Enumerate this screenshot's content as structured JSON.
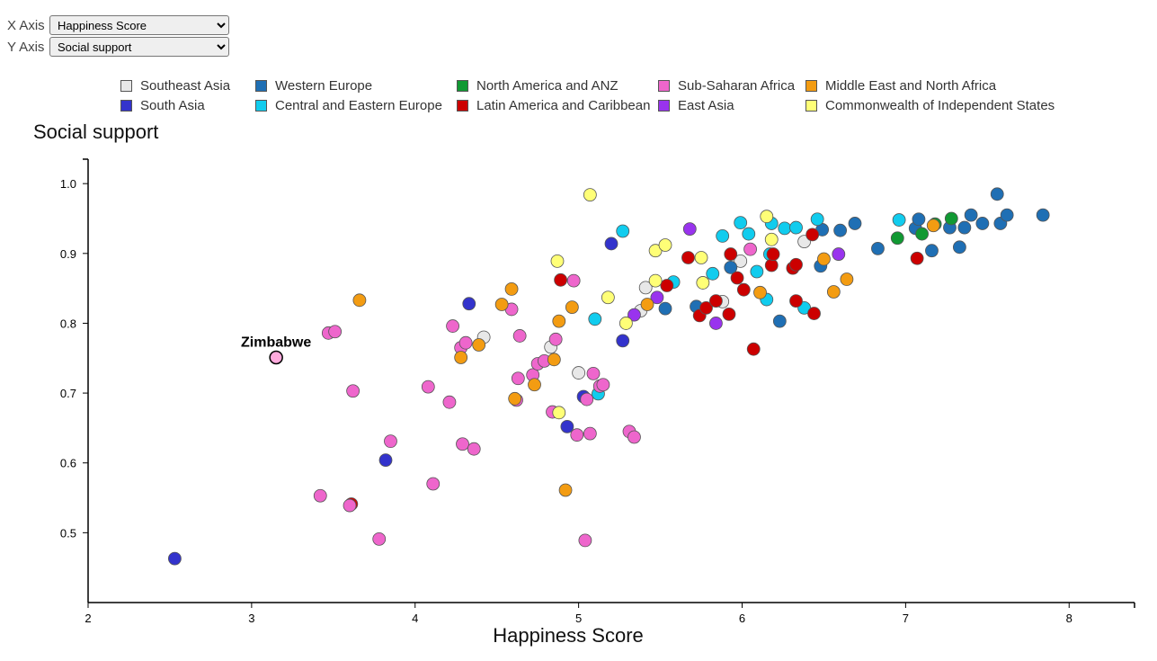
{
  "controls": {
    "x_label": "X Axis",
    "y_label": "Y Axis",
    "x_options": [
      "Happiness Score"
    ],
    "y_options": [
      "Social support"
    ],
    "x_selected": "Happiness Score",
    "y_selected": "Social support"
  },
  "colors": {
    "Southeast Asia": "#e8e8e8",
    "South Asia": "#3333cc",
    "Western Europe": "#1f6fb4",
    "Central and Eastern Europe": "#11ccee",
    "North America and ANZ": "#119933",
    "Latin America and Caribbean": "#cc0000",
    "Sub-Saharan Africa": "#ee66cc",
    "East Asia": "#9933ee",
    "Middle East and North Africa": "#f39c12",
    "Commonwealth of Independent States": "#ffff77"
  },
  "chart_data": {
    "type": "scatter",
    "xlabel": "Happiness Score",
    "ylabel": "Social support",
    "xlim": [
      2,
      8.4
    ],
    "ylim": [
      0.4,
      1.035
    ],
    "x_ticks": [
      2,
      3,
      4,
      5,
      6,
      7,
      8
    ],
    "y_ticks": [
      0.5,
      0.6,
      0.7,
      0.8,
      0.9,
      1.0
    ],
    "legend": [
      "Southeast Asia",
      "Western Europe",
      "North America and ANZ",
      "Sub-Saharan Africa",
      "Middle East and North Africa",
      "South Asia",
      "Central and Eastern Europe",
      "Latin America and Caribbean",
      "East Asia",
      "Commonwealth of Independent States"
    ],
    "highlight": {
      "label": "Zimbabwe",
      "x": 3.15,
      "y": 0.751,
      "region": "Sub-Saharan Africa"
    },
    "series": [
      {
        "name": "Southeast Asia",
        "points": [
          [
            4.42,
            0.78
          ],
          [
            4.83,
            0.766
          ],
          [
            5.0,
            0.729
          ],
          [
            5.38,
            0.818
          ],
          [
            5.41,
            0.851
          ],
          [
            5.88,
            0.831
          ],
          [
            5.99,
            0.889
          ],
          [
            6.38,
            0.917
          ]
        ]
      },
      {
        "name": "South Asia",
        "points": [
          [
            2.53,
            0.463
          ],
          [
            3.82,
            0.604
          ],
          [
            4.33,
            0.828
          ],
          [
            4.93,
            0.652
          ],
          [
            5.03,
            0.695
          ],
          [
            5.2,
            0.914
          ],
          [
            5.27,
            0.775
          ]
        ]
      },
      {
        "name": "Western Europe",
        "points": [
          [
            5.53,
            0.821
          ],
          [
            5.72,
            0.824
          ],
          [
            5.93,
            0.88
          ],
          [
            6.23,
            0.803
          ],
          [
            6.48,
            0.882
          ],
          [
            6.49,
            0.934
          ],
          [
            6.6,
            0.933
          ],
          [
            6.69,
            0.943
          ],
          [
            6.83,
            0.907
          ],
          [
            7.06,
            0.936
          ],
          [
            7.08,
            0.949
          ],
          [
            7.16,
            0.904
          ],
          [
            7.27,
            0.937
          ],
          [
            7.33,
            0.909
          ],
          [
            7.36,
            0.937
          ],
          [
            7.4,
            0.955
          ],
          [
            7.47,
            0.943
          ],
          [
            7.56,
            0.985
          ],
          [
            7.58,
            0.943
          ],
          [
            7.62,
            0.955
          ],
          [
            7.84,
            0.955
          ]
        ]
      },
      {
        "name": "Central and Eastern Europe",
        "points": [
          [
            5.1,
            0.806
          ],
          [
            5.12,
            0.699
          ],
          [
            5.27,
            0.932
          ],
          [
            5.58,
            0.859
          ],
          [
            5.82,
            0.871
          ],
          [
            5.88,
            0.925
          ],
          [
            5.99,
            0.944
          ],
          [
            6.04,
            0.928
          ],
          [
            6.09,
            0.874
          ],
          [
            6.15,
            0.834
          ],
          [
            6.17,
            0.899
          ],
          [
            6.18,
            0.943
          ],
          [
            6.26,
            0.936
          ],
          [
            6.33,
            0.937
          ],
          [
            6.38,
            0.822
          ],
          [
            6.46,
            0.949
          ],
          [
            6.96,
            0.948
          ]
        ]
      },
      {
        "name": "North America and ANZ",
        "points": [
          [
            6.95,
            0.922
          ],
          [
            7.1,
            0.928
          ],
          [
            7.18,
            0.942
          ],
          [
            7.28,
            0.95
          ]
        ]
      },
      {
        "name": "Latin America and Caribbean",
        "points": [
          [
            3.61,
            0.541
          ],
          [
            4.89,
            0.862
          ],
          [
            5.54,
            0.854
          ],
          [
            5.67,
            0.894
          ],
          [
            5.74,
            0.811
          ],
          [
            5.78,
            0.822
          ],
          [
            5.84,
            0.832
          ],
          [
            5.92,
            0.813
          ],
          [
            5.93,
            0.899
          ],
          [
            5.97,
            0.865
          ],
          [
            6.01,
            0.848
          ],
          [
            6.07,
            0.763
          ],
          [
            6.18,
            0.883
          ],
          [
            6.19,
            0.899
          ],
          [
            6.31,
            0.879
          ],
          [
            6.33,
            0.884
          ],
          [
            6.33,
            0.832
          ],
          [
            6.43,
            0.927
          ],
          [
            6.44,
            0.814
          ],
          [
            7.07,
            0.893
          ]
        ]
      },
      {
        "name": "Sub-Saharan Africa",
        "points": [
          [
            3.15,
            0.751
          ],
          [
            3.42,
            0.553
          ],
          [
            3.47,
            0.786
          ],
          [
            3.51,
            0.788
          ],
          [
            3.6,
            0.539
          ],
          [
            3.62,
            0.703
          ],
          [
            3.78,
            0.491
          ],
          [
            3.85,
            0.631
          ],
          [
            4.08,
            0.709
          ],
          [
            4.11,
            0.57
          ],
          [
            4.21,
            0.687
          ],
          [
            4.23,
            0.796
          ],
          [
            4.28,
            0.765
          ],
          [
            4.29,
            0.627
          ],
          [
            4.31,
            0.772
          ],
          [
            4.36,
            0.62
          ],
          [
            4.59,
            0.82
          ],
          [
            4.62,
            0.69
          ],
          [
            4.63,
            0.721
          ],
          [
            4.64,
            0.782
          ],
          [
            4.72,
            0.726
          ],
          [
            4.75,
            0.742
          ],
          [
            4.79,
            0.746
          ],
          [
            4.84,
            0.673
          ],
          [
            4.86,
            0.777
          ],
          [
            4.97,
            0.861
          ],
          [
            4.99,
            0.64
          ],
          [
            5.04,
            0.489
          ],
          [
            5.05,
            0.691
          ],
          [
            5.07,
            0.642
          ],
          [
            5.09,
            0.728
          ],
          [
            5.13,
            0.71
          ],
          [
            5.15,
            0.712
          ],
          [
            5.31,
            0.645
          ],
          [
            5.34,
            0.637
          ],
          [
            6.05,
            0.906
          ]
        ]
      },
      {
        "name": "East Asia",
        "points": [
          [
            5.34,
            0.812
          ],
          [
            5.48,
            0.837
          ],
          [
            5.68,
            0.935
          ],
          [
            5.84,
            0.8
          ],
          [
            6.59,
            0.899
          ]
        ]
      },
      {
        "name": "Middle East and North Africa",
        "points": [
          [
            3.66,
            0.833
          ],
          [
            4.28,
            0.751
          ],
          [
            4.39,
            0.769
          ],
          [
            4.53,
            0.827
          ],
          [
            4.59,
            0.849
          ],
          [
            4.61,
            0.692
          ],
          [
            4.73,
            0.712
          ],
          [
            4.85,
            0.748
          ],
          [
            4.88,
            0.803
          ],
          [
            4.92,
            0.561
          ],
          [
            4.96,
            0.823
          ],
          [
            5.42,
            0.827
          ],
          [
            6.11,
            0.844
          ],
          [
            6.5,
            0.892
          ],
          [
            6.56,
            0.845
          ],
          [
            6.64,
            0.863
          ],
          [
            7.17,
            0.94
          ]
        ]
      },
      {
        "name": "Commonwealth of Independent States",
        "points": [
          [
            4.87,
            0.889
          ],
          [
            4.88,
            0.672
          ],
          [
            5.07,
            0.984
          ],
          [
            5.18,
            0.837
          ],
          [
            5.29,
            0.8
          ],
          [
            5.47,
            0.904
          ],
          [
            5.47,
            0.861
          ],
          [
            5.53,
            0.912
          ],
          [
            5.75,
            0.894
          ],
          [
            5.76,
            0.858
          ],
          [
            6.15,
            0.953
          ],
          [
            6.18,
            0.92
          ]
        ]
      }
    ]
  }
}
